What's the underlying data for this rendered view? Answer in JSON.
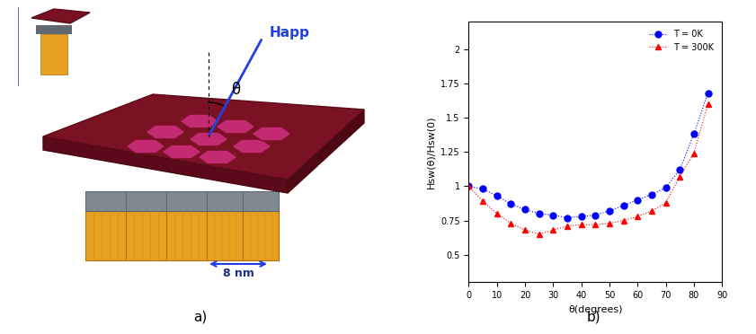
{
  "diagram": {
    "field_label": "Happ",
    "angle_label": "θ",
    "scale_label": "8 nm"
  },
  "panel_labels": [
    "a)",
    "b)"
  ],
  "chart_data": {
    "type": "line",
    "x_label": "θ(degrees)",
    "y_label": "Hsw(θ)/Hsw(0)",
    "x": [
      0,
      5,
      10,
      15,
      20,
      25,
      30,
      35,
      40,
      45,
      50,
      55,
      60,
      65,
      70,
      75,
      80,
      85
    ],
    "series": [
      {
        "name": "T = 0K",
        "color": "#0000ff",
        "marker": "circle",
        "line_style": "dotted",
        "values": [
          1.0,
          0.98,
          0.93,
          0.87,
          0.83,
          0.8,
          0.79,
          0.77,
          0.78,
          0.79,
          0.82,
          0.86,
          0.9,
          0.94,
          0.99,
          1.12,
          1.38,
          1.68
        ]
      },
      {
        "name": "T = 300K",
        "color": "#ff0000",
        "marker": "triangle",
        "line_style": "dotted",
        "values": [
          1.0,
          0.89,
          0.8,
          0.73,
          0.68,
          0.65,
          0.68,
          0.71,
          0.72,
          0.72,
          0.73,
          0.75,
          0.78,
          0.82,
          0.88,
          1.07,
          1.24,
          1.6
        ]
      }
    ],
    "xlim": [
      0,
      90
    ],
    "xticks": [
      0,
      10,
      20,
      30,
      40,
      50,
      60,
      70,
      80,
      90
    ],
    "ylim": [
      0.3,
      2.2
    ],
    "yticks": [
      0.5,
      0.75,
      1,
      1.25,
      1.5,
      1.75,
      2
    ],
    "legend": "upper right",
    "grid": false
  }
}
